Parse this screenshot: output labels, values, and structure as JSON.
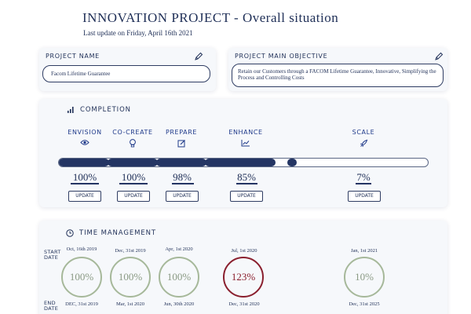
{
  "header": {
    "title": "INNOVATION PROJECT - Overall situation",
    "updated": "Last update on Friday, April 16th 2021"
  },
  "project_name": {
    "label": "PROJECT NAME",
    "value": "Facom Lifetime Guarantee",
    "icon": "pencil-icon"
  },
  "project_objective": {
    "label": "PROJECT MAIN OBJECTIVE",
    "value": "Retain our Customers through a FACOM Lifetime Guarantee, Innovative, Simplifying the Process and Controlling Costs",
    "icon": "pencil-icon"
  },
  "completion": {
    "label": "COMPLETION",
    "icon": "bar-chart-icon",
    "phases": [
      {
        "name": "ENVISION",
        "icon": "eye-icon",
        "percent": "100%",
        "progress": 1.0,
        "update_label": "UPDATE"
      },
      {
        "name": "CO-CREATE",
        "icon": "lightbulb-icon",
        "percent": "100%",
        "progress": 1.0,
        "update_label": "UPDATE"
      },
      {
        "name": "PREPARE",
        "icon": "edit-icon",
        "percent": "98%",
        "progress": 0.98,
        "update_label": "UPDATE"
      },
      {
        "name": "ENHANCE",
        "icon": "trend-icon",
        "percent": "85%",
        "progress": 0.85,
        "update_label": "UPDATE"
      },
      {
        "name": "SCALE",
        "icon": "rocket-icon",
        "percent": "7%",
        "progress": 0.07,
        "update_label": "UPDATE"
      }
    ]
  },
  "time": {
    "label": "TIME MANAGEMENT",
    "icon": "clock-icon",
    "start_label": "START\nDATE",
    "end_label": "END\nDATE",
    "phases": [
      {
        "start": "Oct, 16th 2019",
        "value": "100%",
        "end": "DEC, 31st 2019",
        "over": false
      },
      {
        "start": "Dec, 31st 2019",
        "value": "100%",
        "end": "Mar, 1st 2020",
        "over": false
      },
      {
        "start": "Apr, 1st 2020",
        "value": "100%",
        "end": "Jun, 30th 2020",
        "over": false
      },
      {
        "start": "Jul, 1st 2020",
        "value": "123%",
        "end": "Dec, 31st 2020",
        "over": true
      },
      {
        "start": "Jan, 1st 2021",
        "value": "10%",
        "end": "Dec, 31st 2025",
        "over": false
      }
    ]
  },
  "colors": {
    "navy": "#1f2f57",
    "bar": "#243563",
    "ok": "#a6b89a",
    "over": "#8a1f2e"
  }
}
